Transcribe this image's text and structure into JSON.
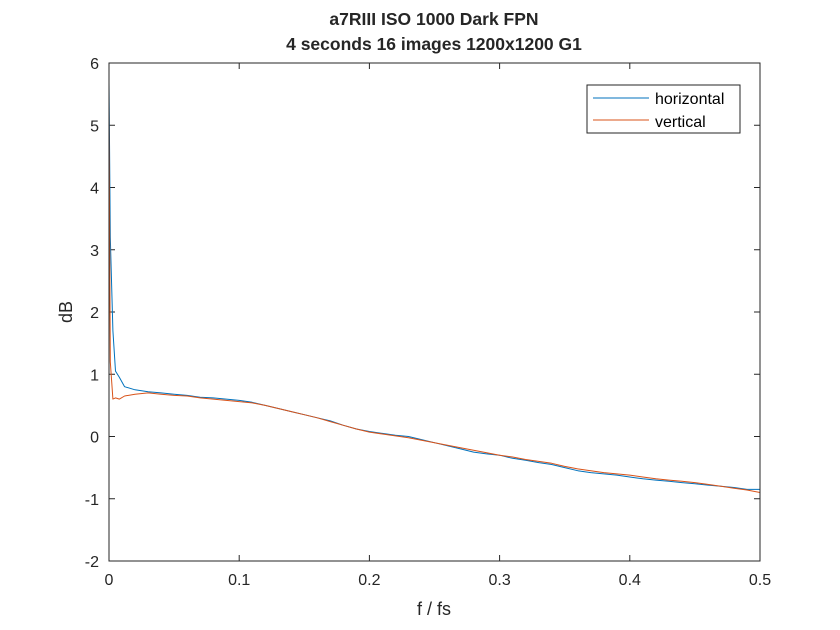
{
  "chart_data": {
    "type": "line",
    "title": [
      "a7RIII ISO 1000 Dark FPN",
      "4 seconds 16 images 1200x1200 G1"
    ],
    "xlabel": "f / fs",
    "ylabel": "dB",
    "xlim": [
      0,
      0.5
    ],
    "ylim": [
      -2,
      6
    ],
    "xticks": [
      0,
      0.1,
      0.2,
      0.3,
      0.4,
      0.5
    ],
    "xtick_labels": [
      "0",
      "0.1",
      "0.2",
      "0.3",
      "0.4",
      "0.5"
    ],
    "yticks": [
      -2,
      -1,
      0,
      1,
      2,
      3,
      4,
      5,
      6
    ],
    "ytick_labels": [
      "-2",
      "-1",
      "0",
      "1",
      "2",
      "3",
      "4",
      "5",
      "6"
    ],
    "grid": false,
    "legend_position": "top-right",
    "series": [
      {
        "name": "horizontal",
        "color": "#0072BD",
        "x": [
          0,
          0.001,
          0.003,
          0.005,
          0.008,
          0.012,
          0.02,
          0.03,
          0.04,
          0.05,
          0.06,
          0.07,
          0.08,
          0.09,
          0.1,
          0.11,
          0.12,
          0.13,
          0.14,
          0.15,
          0.16,
          0.17,
          0.18,
          0.19,
          0.2,
          0.21,
          0.22,
          0.23,
          0.24,
          0.25,
          0.26,
          0.27,
          0.28,
          0.29,
          0.3,
          0.31,
          0.32,
          0.33,
          0.34,
          0.35,
          0.36,
          0.37,
          0.38,
          0.39,
          0.4,
          0.41,
          0.42,
          0.43,
          0.44,
          0.45,
          0.46,
          0.47,
          0.48,
          0.49,
          0.5
        ],
        "y": [
          5.7,
          3.2,
          1.7,
          1.05,
          0.95,
          0.8,
          0.75,
          0.72,
          0.7,
          0.68,
          0.66,
          0.63,
          0.62,
          0.6,
          0.58,
          0.55,
          0.5,
          0.45,
          0.4,
          0.35,
          0.3,
          0.25,
          0.18,
          0.12,
          0.08,
          0.05,
          0.02,
          0.0,
          -0.05,
          -0.1,
          -0.15,
          -0.2,
          -0.25,
          -0.28,
          -0.3,
          -0.35,
          -0.38,
          -0.42,
          -0.45,
          -0.5,
          -0.55,
          -0.58,
          -0.6,
          -0.62,
          -0.65,
          -0.68,
          -0.7,
          -0.72,
          -0.74,
          -0.76,
          -0.78,
          -0.8,
          -0.82,
          -0.85,
          -0.85
        ]
      },
      {
        "name": "vertical",
        "color": "#D95319",
        "x": [
          0,
          0.001,
          0.003,
          0.005,
          0.008,
          0.012,
          0.02,
          0.03,
          0.04,
          0.05,
          0.06,
          0.07,
          0.08,
          0.09,
          0.1,
          0.11,
          0.12,
          0.13,
          0.14,
          0.15,
          0.16,
          0.17,
          0.18,
          0.19,
          0.2,
          0.21,
          0.22,
          0.23,
          0.24,
          0.25,
          0.26,
          0.27,
          0.28,
          0.29,
          0.3,
          0.31,
          0.32,
          0.33,
          0.34,
          0.35,
          0.36,
          0.37,
          0.38,
          0.39,
          0.4,
          0.41,
          0.42,
          0.43,
          0.44,
          0.45,
          0.46,
          0.47,
          0.48,
          0.49,
          0.5
        ],
        "y": [
          5.3,
          1.2,
          0.6,
          0.62,
          0.6,
          0.65,
          0.68,
          0.7,
          0.68,
          0.66,
          0.65,
          0.62,
          0.6,
          0.58,
          0.56,
          0.54,
          0.5,
          0.45,
          0.4,
          0.35,
          0.3,
          0.24,
          0.18,
          0.12,
          0.07,
          0.04,
          0.01,
          -0.02,
          -0.06,
          -0.1,
          -0.14,
          -0.18,
          -0.22,
          -0.26,
          -0.3,
          -0.33,
          -0.37,
          -0.4,
          -0.43,
          -0.48,
          -0.52,
          -0.55,
          -0.58,
          -0.6,
          -0.62,
          -0.65,
          -0.68,
          -0.7,
          -0.72,
          -0.74,
          -0.77,
          -0.8,
          -0.83,
          -0.86,
          -0.9
        ]
      }
    ]
  }
}
